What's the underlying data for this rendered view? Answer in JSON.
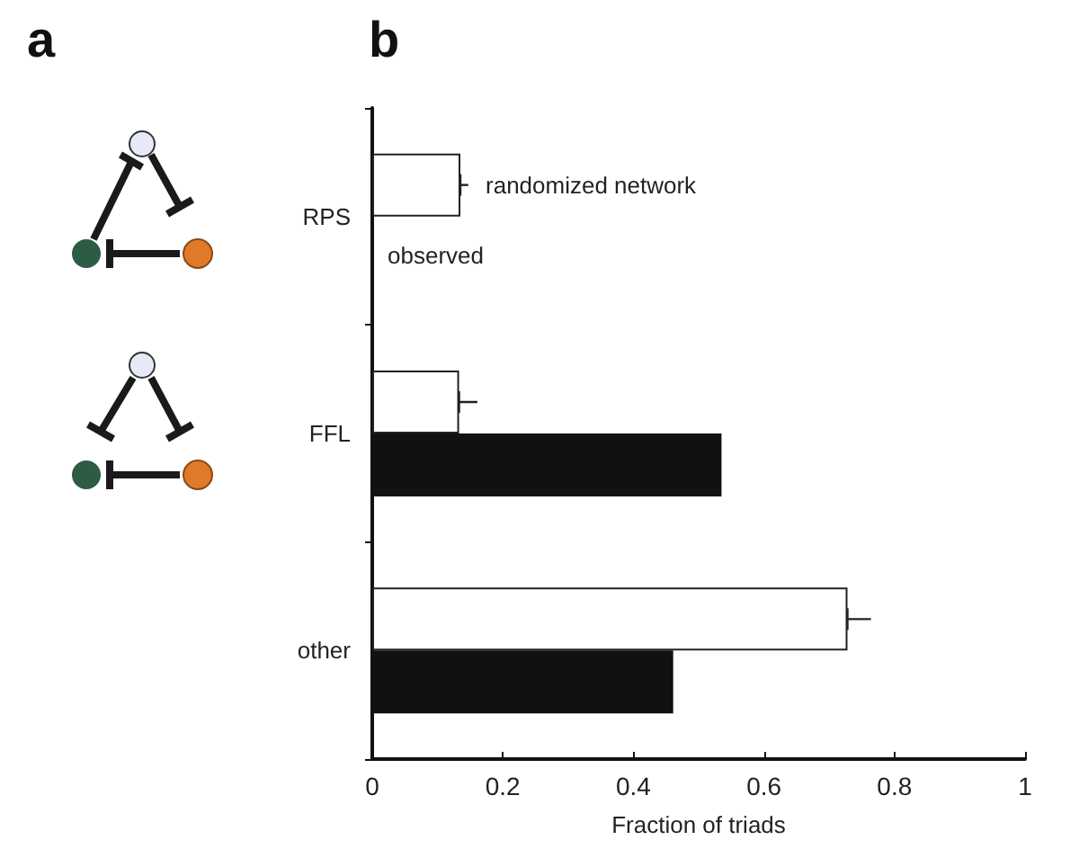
{
  "chart_data": {
    "type": "bar",
    "orientation": "horizontal",
    "xlabel": "Fraction of triads",
    "categories": [
      "RPS",
      "FFL",
      "other"
    ],
    "series": [
      {
        "name": "randomized network",
        "color": "#ffffff",
        "values": [
          0.135,
          0.133,
          0.728
        ],
        "errors": [
          0.012,
          0.028,
          0.036
        ]
      },
      {
        "name": "observed",
        "color": "#111111",
        "values": [
          0,
          0.535,
          0.461
        ]
      }
    ],
    "xlim": [
      0,
      1
    ],
    "xticks": [
      0,
      0.2,
      0.4,
      0.6,
      0.8,
      1
    ],
    "annotations": [
      "a",
      "b"
    ],
    "grid": false
  }
}
